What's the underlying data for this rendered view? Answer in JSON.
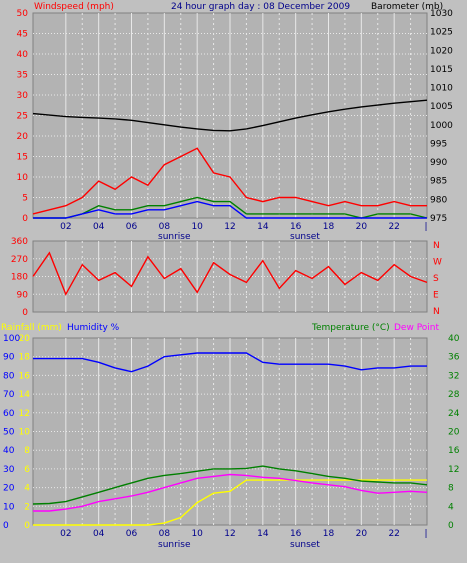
{
  "colors": {
    "background": "#c0c0c0",
    "plot_bg": "#b3b3b3",
    "grid": "#e8e8e8",
    "wind": "#ff0000",
    "barometer": "#000000",
    "direction": "#ff0000",
    "humidity": "#0000ff",
    "rain": "#ffff00",
    "temperature": "#008000",
    "dewpoint": "#ff00ff",
    "label_blue": "#00008b"
  },
  "header": {
    "wind_label": "Windspeed (mph)",
    "title": "24 hour graph day : 08 December 2009",
    "barometer_label": "Barometer (mb)"
  },
  "footer_labels": {
    "top_sunrise": "sunrise",
    "top_sunset": "sunset",
    "bottom_sunrise": "sunrise",
    "bottom_sunset": "sunset"
  },
  "bottom_header": {
    "rain_label": "Rainfall (mm)",
    "humidity_label": "Humidity %",
    "temperature_label": "Temperature (°C)",
    "dewpoint_label": "Dew Point"
  },
  "x_hours": [
    "02",
    "04",
    "06",
    "08",
    "10",
    "12",
    "14",
    "16",
    "18",
    "20",
    "22",
    "|"
  ],
  "direction_letters": [
    "N",
    "W",
    "S",
    "E",
    "N"
  ],
  "chart_data": [
    {
      "type": "line",
      "title": "24 hour graph day : 08 December 2009",
      "xlabel": "",
      "x_ticks": [
        "02",
        "04",
        "06",
        "08",
        "10",
        "12",
        "14",
        "16",
        "18",
        "20",
        "22",
        "|"
      ],
      "ylabel_left": "Windspeed (mph)",
      "ylim_left": [
        0,
        50
      ],
      "yticks_left": [
        0,
        5,
        10,
        15,
        20,
        25,
        30,
        35,
        40,
        45,
        50
      ],
      "ylabel_right": "Barometer (mb)",
      "ylim_right": [
        975,
        1030
      ],
      "yticks_right": [
        975,
        980,
        985,
        990,
        995,
        1000,
        1005,
        1010,
        1015,
        1020,
        1025,
        1030
      ],
      "hours": [
        0,
        1,
        2,
        3,
        4,
        5,
        6,
        7,
        8,
        9,
        10,
        11,
        12,
        13,
        14,
        15,
        16,
        17,
        18,
        19,
        20,
        21,
        22,
        23,
        24
      ],
      "series": [
        {
          "name": "Windspeed (mph)",
          "axis": "left",
          "values": [
            1,
            2,
            3,
            5,
            9,
            7,
            10,
            8,
            13,
            15,
            17,
            11,
            10,
            5,
            4,
            5,
            5,
            4,
            3,
            4,
            3,
            3,
            4,
            3,
            3
          ]
        },
        {
          "name": "Barometer (mb)",
          "axis": "right",
          "values": [
            1003,
            1002.6,
            1002.2,
            1002,
            1001.8,
            1001.6,
            1001.2,
            1000.6,
            1000,
            999.4,
            998.9,
            998.5,
            998.4,
            998.9,
            999.8,
            1000.8,
            1001.8,
            1002.7,
            1003.5,
            1004.2,
            1004.8,
            1005.3,
            1005.8,
            1006.2,
            1006.6
          ]
        },
        {
          "axis": "left",
          "values": [
            0,
            0,
            0,
            1,
            3,
            2,
            2,
            3,
            3,
            4,
            5,
            4,
            4,
            1,
            1,
            1,
            1,
            1,
            1,
            1,
            0,
            1,
            1,
            1,
            0
          ]
        },
        {
          "axis": "left",
          "values": [
            0,
            0,
            0,
            1,
            2,
            1,
            1,
            2,
            2,
            3,
            4,
            3,
            3,
            0,
            0,
            0,
            0,
            0,
            0,
            0,
            0,
            0,
            0,
            0,
            0
          ]
        }
      ]
    },
    {
      "type": "line",
      "xlabel": "",
      "ylim": [
        0,
        360
      ],
      "yticks": [
        0,
        90,
        180,
        270,
        360
      ],
      "hours": [
        0,
        1,
        2,
        3,
        4,
        5,
        6,
        7,
        8,
        9,
        10,
        11,
        12,
        13,
        14,
        15,
        16,
        17,
        18,
        19,
        20,
        21,
        22,
        23,
        24
      ],
      "series": [
        {
          "values": [
            180,
            300,
            90,
            240,
            160,
            200,
            130,
            280,
            170,
            220,
            100,
            250,
            190,
            150,
            260,
            120,
            210,
            170,
            230,
            140,
            200,
            160,
            240,
            180,
            150
          ]
        }
      ]
    },
    {
      "type": "line",
      "xlabel": "",
      "x_ticks": [
        "02",
        "04",
        "06",
        "08",
        "10",
        "12",
        "14",
        "16",
        "18",
        "20",
        "22",
        "|"
      ],
      "ylabel_left": "Humidity %",
      "ylim_left": [
        0,
        100
      ],
      "yticks_left": [
        0,
        10,
        20,
        30,
        40,
        50,
        60,
        70,
        80,
        90,
        100
      ],
      "ylabel_left2": "Rainfall (mm)",
      "ylim_left2": [
        0,
        20
      ],
      "yticks_left2": [
        0,
        2,
        4,
        6,
        8,
        10,
        12,
        14,
        16,
        18,
        20
      ],
      "ylabel_right": "Temperature (°C)",
      "ylim_right": [
        0,
        40
      ],
      "yticks_right": [
        0,
        4,
        8,
        12,
        16,
        20,
        24,
        28,
        32,
        36,
        40
      ],
      "hours": [
        0,
        1,
        2,
        3,
        4,
        5,
        6,
        7,
        8,
        9,
        10,
        11,
        12,
        13,
        14,
        15,
        16,
        17,
        18,
        19,
        20,
        21,
        22,
        23,
        24
      ],
      "series": [
        {
          "name": "Humidity %",
          "axis": "left",
          "values": [
            89,
            89,
            89,
            89,
            87,
            84,
            82,
            85,
            90,
            91,
            92,
            92,
            92,
            92,
            87,
            86,
            86,
            86,
            86,
            85,
            83,
            84,
            84,
            85,
            85
          ]
        },
        {
          "name": "Rainfall (mm)",
          "axis": "left2",
          "values": [
            0,
            0,
            0,
            0,
            0,
            0,
            0,
            0,
            0.2,
            0.8,
            2.4,
            3.4,
            3.6,
            4.8,
            4.8,
            4.8,
            4.8,
            4.8,
            4.8,
            4.8,
            4.8,
            4.8,
            4.8,
            4.8,
            4.8
          ]
        },
        {
          "name": "Temperature (°C)",
          "axis": "right",
          "values": [
            4.5,
            4.6,
            5,
            6,
            7,
            8,
            9,
            10,
            10.6,
            11,
            11.5,
            12,
            12,
            12.1,
            12.6,
            12,
            11.6,
            11,
            10.4,
            10,
            9.4,
            9.2,
            9,
            9,
            8.6
          ]
        },
        {
          "name": "Dew Point",
          "axis": "right",
          "values": [
            3,
            3,
            3.4,
            4,
            5,
            5.6,
            6.2,
            7,
            8,
            9,
            10,
            10.4,
            10.8,
            10.6,
            10.2,
            10,
            9.5,
            9,
            8.6,
            8.2,
            7.4,
            6.8,
            7,
            7.2,
            7
          ]
        }
      ]
    }
  ]
}
